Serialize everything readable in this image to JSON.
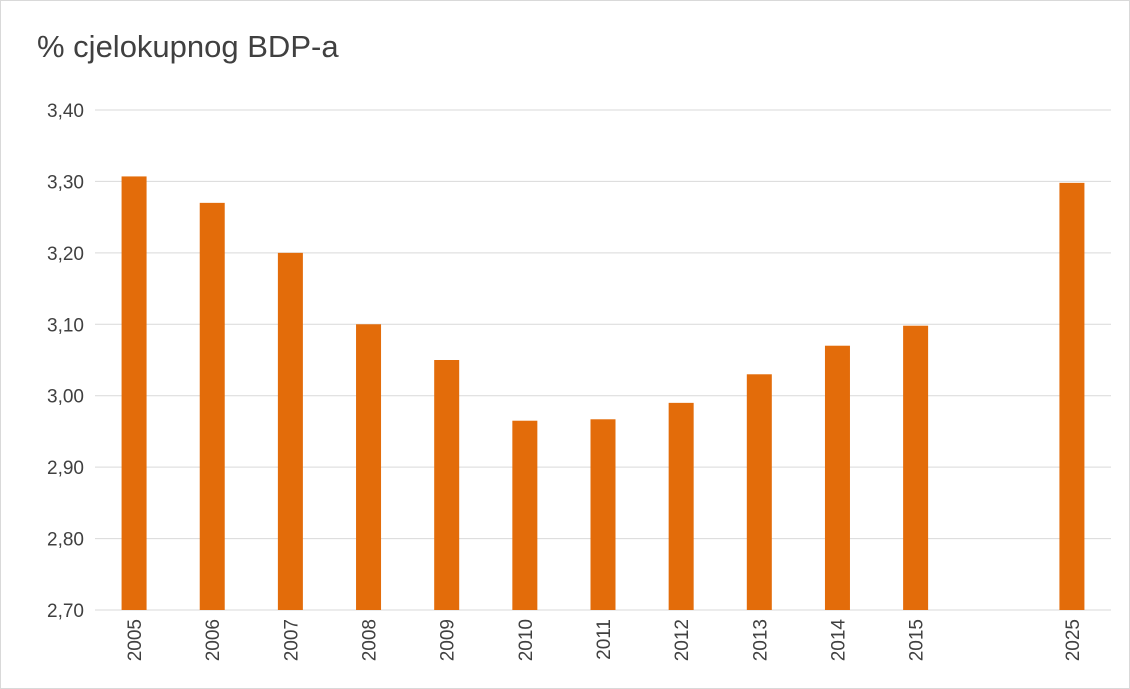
{
  "chart_data": {
    "type": "bar",
    "title": "% cjelokupnog BDP-a",
    "xlabel": "",
    "ylabel": "",
    "categories": [
      "2005",
      "2006",
      "2007",
      "2008",
      "2009",
      "2010",
      "2011",
      "2012",
      "2013",
      "2014",
      "2015",
      "",
      "2025"
    ],
    "values": [
      3.307,
      3.27,
      3.2,
      3.1,
      3.05,
      2.965,
      2.967,
      2.99,
      3.03,
      3.07,
      3.098,
      null,
      3.298
    ],
    "ylim": [
      2.7,
      3.4
    ],
    "yticks": [
      "2,70",
      "2,80",
      "2,90",
      "3,00",
      "3,10",
      "3,20",
      "3,30",
      "3,40"
    ],
    "grid": true,
    "legend": "none",
    "bar_color": "#E36C0A",
    "grid_color": "#d9d9d9",
    "text_color": "#404040"
  }
}
